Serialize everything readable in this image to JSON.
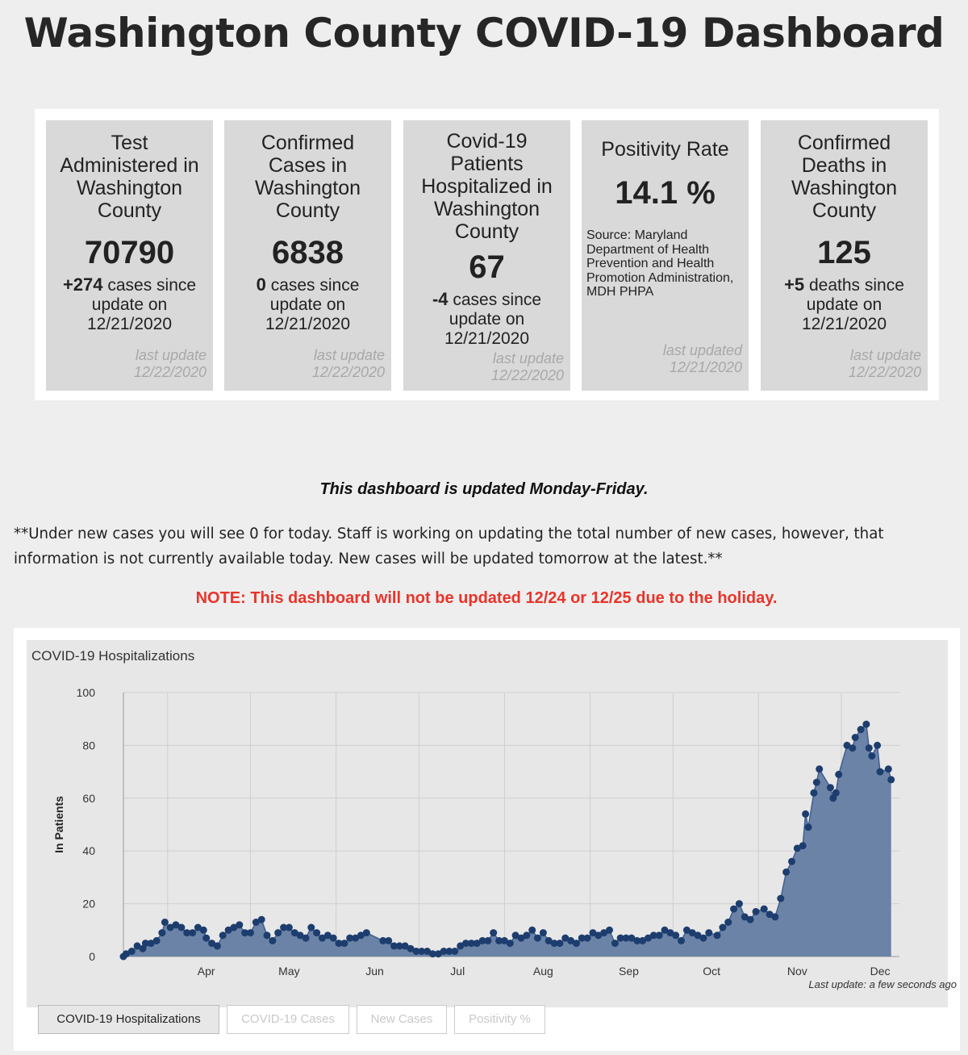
{
  "page": {
    "title": "Washington County COVID-19 Dashboard"
  },
  "cards": {
    "tests": {
      "title": "Test Administered in Washington County",
      "value": "70790",
      "change": "+274",
      "change_text": "cases since update on 12/21/2020",
      "footer": "last update\n12/22/2020"
    },
    "cases": {
      "title": "Confirmed Cases in Washington County",
      "value": "6838",
      "change": "0",
      "change_text": "cases since update on 12/21/2020",
      "footer": "last update\n12/22/2020"
    },
    "hospitalized": {
      "title": "Covid-19 Patients Hospitalized in Washington County",
      "value": "67",
      "change": "-4",
      "change_text": "cases since update on 12/21/2020",
      "footer": "last update\n12/22/2020"
    },
    "positivity": {
      "title": "Positivity Rate",
      "value": "14.1 %",
      "source": "Source: Maryland Department of Health Prevention and Health Promotion Administration, MDH PHPA",
      "footer": "last updated\n12/21/2020"
    },
    "deaths": {
      "title": "Confirmed Deaths in Washington County",
      "value": "125",
      "change": "+5",
      "change_text": "deaths since update on 12/21/2020",
      "footer": "last update\n12/22/2020"
    }
  },
  "notices": {
    "schedule": "This dashboard is updated Monday-Friday.",
    "new_cases_note": "**Under new cases you will see 0 for today. Staff is working on updating the total number of new cases, however, that information is not currently available today. New cases will be updated tomorrow at the latest.**",
    "holiday": "NOTE: This dashboard will not be updated 12/24 or 12/25 due to the holiday."
  },
  "chart_panel": {
    "last_update": "Last update: a few seconds ago",
    "tabs": [
      {
        "label": "COVID-19 Hospitalizations",
        "active": true
      },
      {
        "label": "COVID-19 Cases",
        "active": false
      },
      {
        "label": "New Cases",
        "active": false
      },
      {
        "label": "Positivity %",
        "active": false
      }
    ]
  },
  "colors": {
    "area_fill": "#6b83a6",
    "line": "#3f5f8f",
    "marker": "#1d3d6e",
    "note_red": "#e8342a"
  },
  "chart_data": {
    "type": "area",
    "title": "COVID-19 Hospitalizations",
    "xlabel": "",
    "ylabel": "In Patients",
    "ylim": [
      0,
      100
    ],
    "yticks": [
      0,
      20,
      40,
      60,
      80,
      100
    ],
    "xlim": [
      "2020-03-16",
      "2020-12-22"
    ],
    "month_ticks": [
      {
        "label": "Apr",
        "date": "2020-04-15"
      },
      {
        "label": "May",
        "date": "2020-05-15"
      },
      {
        "label": "Jun",
        "date": "2020-06-15"
      },
      {
        "label": "Jul",
        "date": "2020-07-15"
      },
      {
        "label": "Aug",
        "date": "2020-08-15"
      },
      {
        "label": "Sep",
        "date": "2020-09-15"
      },
      {
        "label": "Oct",
        "date": "2020-10-15"
      },
      {
        "label": "Nov",
        "date": "2020-11-15"
      },
      {
        "label": "Dec",
        "date": "2020-12-15"
      }
    ],
    "grid": true,
    "legend": "none",
    "series": [
      {
        "points": [
          [
            "2020-03-16",
            0
          ],
          [
            "2020-03-17",
            1
          ],
          [
            "2020-03-19",
            2
          ],
          [
            "2020-03-21",
            4
          ],
          [
            "2020-03-23",
            3
          ],
          [
            "2020-03-24",
            5
          ],
          [
            "2020-03-26",
            5
          ],
          [
            "2020-03-28",
            6
          ],
          [
            "2020-03-30",
            9
          ],
          [
            "2020-03-31",
            13
          ],
          [
            "2020-04-02",
            11
          ],
          [
            "2020-04-04",
            12
          ],
          [
            "2020-04-06",
            11
          ],
          [
            "2020-04-08",
            9
          ],
          [
            "2020-04-10",
            9
          ],
          [
            "2020-04-12",
            11
          ],
          [
            "2020-04-14",
            10
          ],
          [
            "2020-04-15",
            7
          ],
          [
            "2020-04-17",
            5
          ],
          [
            "2020-04-19",
            4
          ],
          [
            "2020-04-21",
            8
          ],
          [
            "2020-04-23",
            10
          ],
          [
            "2020-04-25",
            11
          ],
          [
            "2020-04-27",
            12
          ],
          [
            "2020-04-29",
            9
          ],
          [
            "2020-05-01",
            9
          ],
          [
            "2020-05-03",
            13
          ],
          [
            "2020-05-05",
            14
          ],
          [
            "2020-05-07",
            8
          ],
          [
            "2020-05-09",
            6
          ],
          [
            "2020-05-11",
            9
          ],
          [
            "2020-05-13",
            11
          ],
          [
            "2020-05-15",
            11
          ],
          [
            "2020-05-17",
            9
          ],
          [
            "2020-05-19",
            8
          ],
          [
            "2020-05-21",
            7
          ],
          [
            "2020-05-23",
            11
          ],
          [
            "2020-05-25",
            9
          ],
          [
            "2020-05-27",
            7
          ],
          [
            "2020-05-29",
            8
          ],
          [
            "2020-05-31",
            7
          ],
          [
            "2020-06-02",
            5
          ],
          [
            "2020-06-04",
            5
          ],
          [
            "2020-06-06",
            7
          ],
          [
            "2020-06-08",
            7
          ],
          [
            "2020-06-10",
            8
          ],
          [
            "2020-06-12",
            9
          ],
          [
            "2020-06-18",
            6
          ],
          [
            "2020-06-20",
            6
          ],
          [
            "2020-06-22",
            4
          ],
          [
            "2020-06-24",
            4
          ],
          [
            "2020-06-26",
            4
          ],
          [
            "2020-06-28",
            3
          ],
          [
            "2020-06-30",
            2
          ],
          [
            "2020-07-02",
            2
          ],
          [
            "2020-07-04",
            2
          ],
          [
            "2020-07-06",
            1
          ],
          [
            "2020-07-08",
            1
          ],
          [
            "2020-07-10",
            2
          ],
          [
            "2020-07-12",
            2
          ],
          [
            "2020-07-14",
            2
          ],
          [
            "2020-07-16",
            4
          ],
          [
            "2020-07-18",
            5
          ],
          [
            "2020-07-20",
            5
          ],
          [
            "2020-07-22",
            5
          ],
          [
            "2020-07-24",
            6
          ],
          [
            "2020-07-26",
            6
          ],
          [
            "2020-07-28",
            9
          ],
          [
            "2020-07-30",
            6
          ],
          [
            "2020-08-01",
            6
          ],
          [
            "2020-08-03",
            5
          ],
          [
            "2020-08-05",
            8
          ],
          [
            "2020-08-07",
            7
          ],
          [
            "2020-08-09",
            8
          ],
          [
            "2020-08-11",
            10
          ],
          [
            "2020-08-13",
            7
          ],
          [
            "2020-08-15",
            9
          ],
          [
            "2020-08-17",
            6
          ],
          [
            "2020-08-19",
            5
          ],
          [
            "2020-08-21",
            5
          ],
          [
            "2020-08-23",
            7
          ],
          [
            "2020-08-25",
            6
          ],
          [
            "2020-08-27",
            5
          ],
          [
            "2020-08-29",
            7
          ],
          [
            "2020-08-31",
            7
          ],
          [
            "2020-09-02",
            9
          ],
          [
            "2020-09-04",
            8
          ],
          [
            "2020-09-06",
            9
          ],
          [
            "2020-09-08",
            10
          ],
          [
            "2020-09-10",
            5
          ],
          [
            "2020-09-12",
            7
          ],
          [
            "2020-09-14",
            7
          ],
          [
            "2020-09-16",
            7
          ],
          [
            "2020-09-18",
            6
          ],
          [
            "2020-09-20",
            6
          ],
          [
            "2020-09-22",
            7
          ],
          [
            "2020-09-24",
            8
          ],
          [
            "2020-09-26",
            8
          ],
          [
            "2020-09-28",
            10
          ],
          [
            "2020-09-30",
            9
          ],
          [
            "2020-10-02",
            8
          ],
          [
            "2020-10-04",
            6
          ],
          [
            "2020-10-06",
            10
          ],
          [
            "2020-10-08",
            9
          ],
          [
            "2020-10-10",
            8
          ],
          [
            "2020-10-12",
            7
          ],
          [
            "2020-10-14",
            9
          ],
          [
            "2020-10-17",
            8
          ],
          [
            "2020-10-19",
            11
          ],
          [
            "2020-10-21",
            13
          ],
          [
            "2020-10-23",
            18
          ],
          [
            "2020-10-25",
            20
          ],
          [
            "2020-10-27",
            15
          ],
          [
            "2020-10-29",
            14
          ],
          [
            "2020-10-31",
            17
          ],
          [
            "2020-11-03",
            18
          ],
          [
            "2020-11-05",
            16
          ],
          [
            "2020-11-07",
            15
          ],
          [
            "2020-11-09",
            22
          ],
          [
            "2020-11-11",
            32
          ],
          [
            "2020-11-13",
            36
          ],
          [
            "2020-11-15",
            41
          ],
          [
            "2020-11-17",
            42
          ],
          [
            "2020-11-18",
            54
          ],
          [
            "2020-11-19",
            49
          ],
          [
            "2020-11-21",
            62
          ],
          [
            "2020-11-22",
            66
          ],
          [
            "2020-11-23",
            71
          ],
          [
            "2020-11-27",
            64
          ],
          [
            "2020-11-28",
            60
          ],
          [
            "2020-11-29",
            62
          ],
          [
            "2020-11-30",
            69
          ],
          [
            "2020-12-03",
            80
          ],
          [
            "2020-12-05",
            79
          ],
          [
            "2020-12-06",
            83
          ],
          [
            "2020-12-08",
            86
          ],
          [
            "2020-12-10",
            88
          ],
          [
            "2020-12-11",
            79
          ],
          [
            "2020-12-12",
            76
          ],
          [
            "2020-12-14",
            80
          ],
          [
            "2020-12-15",
            70
          ],
          [
            "2020-12-18",
            71
          ],
          [
            "2020-12-19",
            67
          ]
        ]
      }
    ]
  }
}
